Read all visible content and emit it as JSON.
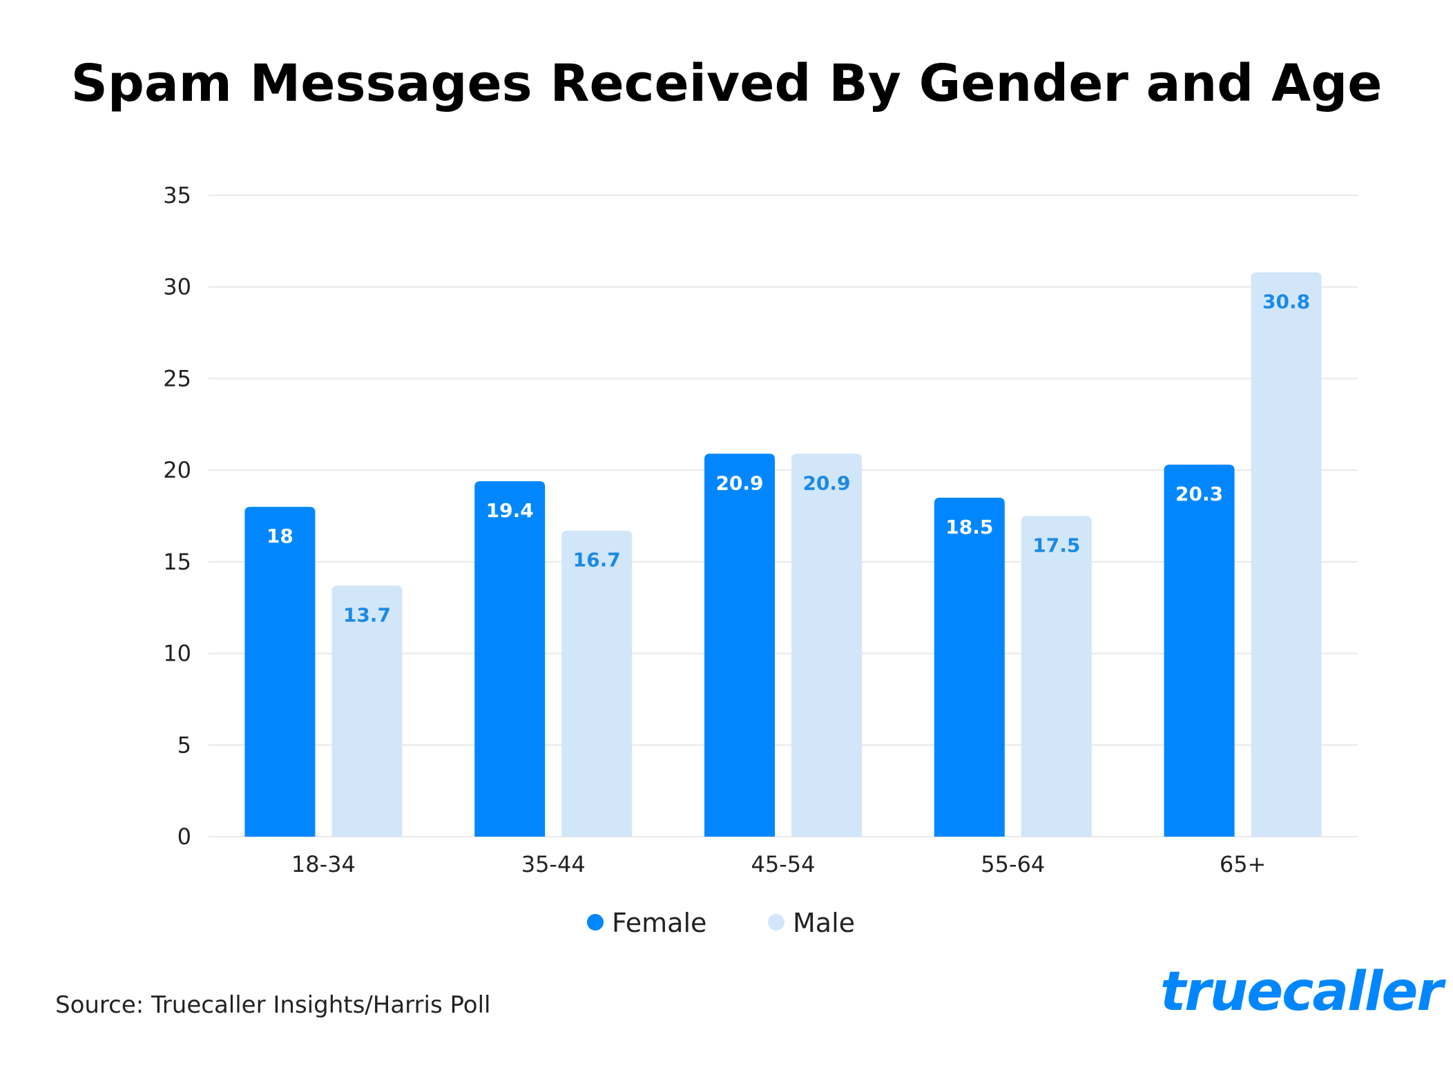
{
  "title": "Spam Messages Received By Gender and Age",
  "source": "Source: Truecaller Insights/Harris Poll",
  "logo_text": "truecaller",
  "colors": {
    "female": "#0087ff",
    "male": "#d2e6fa",
    "female_label": "#ffffff",
    "male_label": "#1a8ae6",
    "grid": "#e8e8e8",
    "logo": "#0087ff"
  },
  "chart_data": {
    "type": "bar",
    "categories": [
      "18-34",
      "35-44",
      "45-54",
      "55-64",
      "65+"
    ],
    "series": [
      {
        "name": "Female",
        "values": [
          18,
          19.4,
          20.9,
          18.5,
          20.3
        ]
      },
      {
        "name": "Male",
        "values": [
          13.7,
          16.7,
          20.9,
          17.5,
          30.8
        ]
      }
    ],
    "data_labels": [
      [
        "18",
        "19.4",
        "20.9",
        "18.5",
        "20.3"
      ],
      [
        "13.7",
        "16.7",
        "20.9",
        "17.5",
        "30.8"
      ]
    ],
    "ylim": [
      0,
      35
    ],
    "yticks": [
      0,
      5,
      10,
      15,
      20,
      25,
      30,
      35
    ],
    "grid": true,
    "legend_position": "bottom-center",
    "xlabel": "",
    "ylabel": ""
  }
}
